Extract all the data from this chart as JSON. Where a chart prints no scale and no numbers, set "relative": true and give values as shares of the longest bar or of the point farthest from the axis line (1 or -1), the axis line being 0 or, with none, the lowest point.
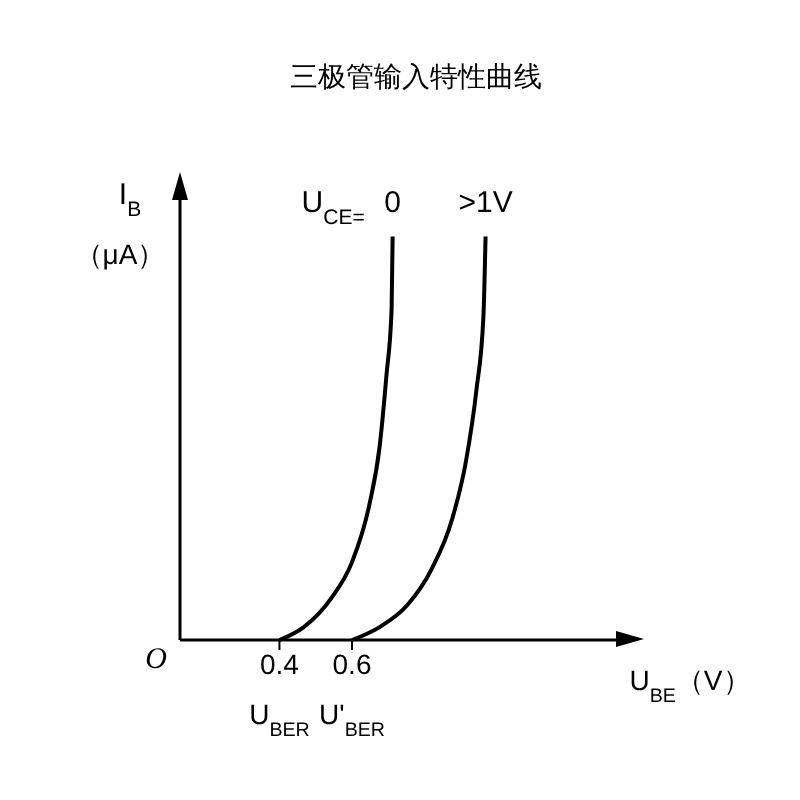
{
  "chart_data": {
    "type": "line",
    "title": "三极管输入特性曲线",
    "xlabel": "U$_{BE}$（V）",
    "ylabel": "I$_{B}$ （μA）",
    "legend_title": "U$_{CE=}$",
    "relative": true,
    "legend": false,
    "grid": false,
    "xlim": [
      0.126,
      1.366
    ],
    "xticks": [
      0.4,
      0.6
    ],
    "series": [
      {
        "name": "0",
        "color": "#000000",
        "x": [
          0.4,
          0.467,
          0.543,
          0.6,
          0.648,
          0.676,
          0.695,
          0.709,
          0.712
        ],
        "values": [
          0,
          0.032,
          0.104,
          0.193,
          0.336,
          0.479,
          0.657,
          0.818,
          1
        ]
      },
      {
        "name": ">1V",
        "color": "#000000",
        "x": [
          0.6,
          0.676,
          0.752,
          0.819,
          0.876,
          0.914,
          0.943,
          0.962,
          0.968
        ],
        "values": [
          0,
          0.032,
          0.086,
          0.175,
          0.3,
          0.443,
          0.621,
          0.8,
          1
        ]
      }
    ],
    "annotations": [
      "O",
      {
        "text": "U$_{BER}$",
        "x": 0.4,
        "y": 0
      },
      {
        "text": "U'$_{BER}$",
        "x": 0.6,
        "y": 0
      }
    ]
  }
}
